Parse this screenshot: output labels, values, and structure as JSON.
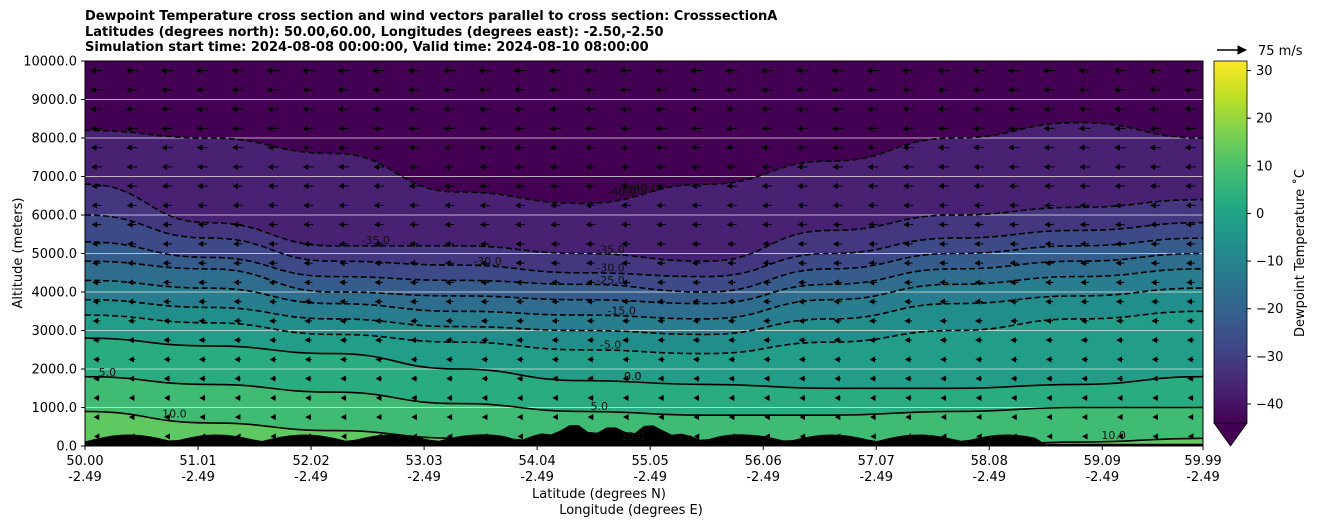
{
  "chart_data": {
    "type": "heatmap",
    "title_lines": [
      "Dewpoint Temperature cross section and wind vectors parallel to cross section: CrosssectionA",
      "Latitudes (degrees north): 50.00,60.00, Longitudes (degrees east): -2.50,-2.50",
      "Simulation start time: 2024-08-08 00:00:00, Valid time: 2024-08-10 08:00:00"
    ],
    "ylabel": "Altitude (meters)",
    "xlabel_lines": [
      "Latitude (degrees N)",
      "Longitude (degrees E)"
    ],
    "ylim": [
      0,
      10000
    ],
    "xlim": [
      50.0,
      59.99
    ],
    "y_ticks": [
      "0.0",
      "1000.0",
      "2000.0",
      "3000.0",
      "4000.0",
      "5000.0",
      "6000.0",
      "7000.0",
      "8000.0",
      "9000.0",
      "10000.0"
    ],
    "x_ticks": [
      {
        "lat": "50.00",
        "lon": "-2.49"
      },
      {
        "lat": "51.01",
        "lon": "-2.49"
      },
      {
        "lat": "52.02",
        "lon": "-2.49"
      },
      {
        "lat": "53.03",
        "lon": "-2.49"
      },
      {
        "lat": "54.04",
        "lon": "-2.49"
      },
      {
        "lat": "55.05",
        "lon": "-2.49"
      },
      {
        "lat": "56.06",
        "lon": "-2.49"
      },
      {
        "lat": "57.07",
        "lon": "-2.49"
      },
      {
        "lat": "58.08",
        "lon": "-2.49"
      },
      {
        "lat": "59.09",
        "lon": "-2.49"
      },
      {
        "lat": "59.99",
        "lon": "-2.49"
      }
    ],
    "grid": "horizontal",
    "colorbar": {
      "label": "Dewpoint Temperature $^\\circ$C",
      "label_display": "Dewpoint Temperature ˚C",
      "ticks": [
        "−40",
        "−30",
        "−20",
        "−10",
        "0",
        "10",
        "20",
        "30"
      ],
      "range": [
        -44,
        32
      ],
      "colormap": "viridis",
      "extend": "min"
    },
    "wind_key": {
      "label": "75 m/s"
    },
    "contours": [
      {
        "value": -40,
        "style": "dashed",
        "altitude_m": [
          8200,
          8000,
          7600,
          6600,
          6300,
          6800,
          7400,
          8000,
          8400,
          8000
        ]
      },
      {
        "value": -35,
        "style": "dashed",
        "altitude_m": [
          6800,
          5800,
          5200,
          5200,
          5000,
          4800,
          5600,
          6000,
          6200,
          6400
        ]
      },
      {
        "value": -30,
        "style": "dashed",
        "altitude_m": [
          6000,
          5400,
          4800,
          4700,
          4500,
          4400,
          5000,
          5400,
          5600,
          5800
        ]
      },
      {
        "value": -25,
        "style": "dashed",
        "altitude_m": [
          5300,
          4900,
          4400,
          4300,
          4200,
          4000,
          4600,
          5000,
          5200,
          5400
        ]
      },
      {
        "value": -20,
        "style": "dashed",
        "altitude_m": [
          4800,
          4600,
          4000,
          3900,
          3800,
          3700,
          4200,
          4600,
          4800,
          5000
        ]
      },
      {
        "value": -15,
        "style": "dashed",
        "altitude_m": [
          4300,
          4100,
          3700,
          3500,
          3400,
          3300,
          3800,
          4200,
          4400,
          4600
        ]
      },
      {
        "value": -10,
        "style": "dashed",
        "altitude_m": [
          3800,
          3600,
          3300,
          3100,
          3000,
          2900,
          3300,
          3700,
          3900,
          4100
        ]
      },
      {
        "value": -5,
        "style": "dashed",
        "altitude_m": [
          3400,
          3200,
          2900,
          2700,
          2500,
          2400,
          2700,
          3000,
          3300,
          3500
        ]
      },
      {
        "value": 0,
        "style": "solid",
        "altitude_m": [
          2800,
          2600,
          2400,
          2000,
          1700,
          1600,
          1500,
          1500,
          1600,
          1800
        ]
      },
      {
        "value": 5,
        "style": "solid",
        "altitude_m": [
          1800,
          1600,
          1400,
          1100,
          900,
          800,
          800,
          900,
          1000,
          1000
        ]
      },
      {
        "value": 10,
        "style": "solid",
        "altitude_m": [
          900,
          600,
          400,
          200,
          100,
          100,
          0,
          0,
          100,
          200
        ]
      }
    ],
    "contour_labels": [
      "-40.0",
      "-40.0",
      "-40.0",
      "-35.0",
      "-35.0",
      "-30.0",
      "-30.0",
      "-25.0",
      "-15.0",
      "-5.0",
      "0.0",
      "0.0",
      "5.0",
      "5.0",
      "10.0",
      "10.0",
      "10.0"
    ]
  }
}
